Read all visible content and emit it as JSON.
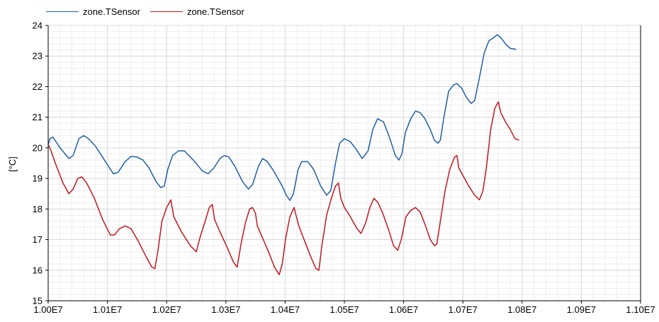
{
  "chart_data": {
    "type": "line",
    "xlabel": "",
    "ylabel": "[°C]",
    "xlim": [
      10000000,
      11000000
    ],
    "ylim": [
      15,
      24
    ],
    "grid": true,
    "legend_position": "top-left",
    "x_ticks": [
      10000000,
      10100000,
      10200000,
      10300000,
      10400000,
      10500000,
      10600000,
      10700000,
      10800000,
      10900000,
      11000000
    ],
    "x_tick_labels": [
      "1.00E7",
      "1.01E7",
      "1.02E7",
      "1.03E7",
      "1.04E7",
      "1.05E7",
      "1.06E7",
      "1.07E7",
      "1.08E7",
      "1.09E7",
      "1.10E7"
    ],
    "y_ticks": [
      15,
      16,
      17,
      18,
      19,
      20,
      21,
      22,
      23,
      24
    ],
    "y_tick_labels": [
      "15",
      "16",
      "17",
      "18",
      "19",
      "20",
      "21",
      "22",
      "23",
      "24"
    ],
    "series": [
      {
        "name": "zone.TSensor",
        "color": "#1f5fa6",
        "points": [
          [
            10000000,
            20.1
          ],
          [
            10003000,
            20.3
          ],
          [
            10008000,
            20.35
          ],
          [
            10020000,
            20.0
          ],
          [
            10035000,
            19.65
          ],
          [
            10042000,
            19.75
          ],
          [
            10052000,
            20.3
          ],
          [
            10060000,
            20.4
          ],
          [
            10068000,
            20.3
          ],
          [
            10080000,
            20.05
          ],
          [
            10095000,
            19.6
          ],
          [
            10110000,
            19.15
          ],
          [
            10118000,
            19.2
          ],
          [
            10130000,
            19.55
          ],
          [
            10140000,
            19.72
          ],
          [
            10150000,
            19.7
          ],
          [
            10160000,
            19.6
          ],
          [
            10170000,
            19.35
          ],
          [
            10182000,
            18.9
          ],
          [
            10190000,
            18.7
          ],
          [
            10196000,
            18.75
          ],
          [
            10202000,
            19.3
          ],
          [
            10210000,
            19.75
          ],
          [
            10220000,
            19.9
          ],
          [
            10230000,
            19.9
          ],
          [
            10245000,
            19.6
          ],
          [
            10260000,
            19.25
          ],
          [
            10270000,
            19.15
          ],
          [
            10280000,
            19.35
          ],
          [
            10290000,
            19.65
          ],
          [
            10297000,
            19.75
          ],
          [
            10305000,
            19.7
          ],
          [
            10315000,
            19.4
          ],
          [
            10328000,
            18.9
          ],
          [
            10338000,
            18.65
          ],
          [
            10345000,
            18.8
          ],
          [
            10355000,
            19.4
          ],
          [
            10362000,
            19.65
          ],
          [
            10370000,
            19.55
          ],
          [
            10382000,
            19.2
          ],
          [
            10395000,
            18.75
          ],
          [
            10402000,
            18.45
          ],
          [
            10408000,
            18.28
          ],
          [
            10414000,
            18.5
          ],
          [
            10422000,
            19.3
          ],
          [
            10428000,
            19.55
          ],
          [
            10438000,
            19.55
          ],
          [
            10448000,
            19.3
          ],
          [
            10460000,
            18.75
          ],
          [
            10470000,
            18.45
          ],
          [
            10477000,
            18.6
          ],
          [
            10485000,
            19.5
          ],
          [
            10492000,
            20.15
          ],
          [
            10500000,
            20.3
          ],
          [
            10510000,
            20.2
          ],
          [
            10520000,
            19.95
          ],
          [
            10530000,
            19.65
          ],
          [
            10540000,
            19.9
          ],
          [
            10548000,
            20.6
          ],
          [
            10556000,
            20.95
          ],
          [
            10566000,
            20.85
          ],
          [
            10576000,
            20.35
          ],
          [
            10586000,
            19.75
          ],
          [
            10592000,
            19.6
          ],
          [
            10597000,
            19.8
          ],
          [
            10603000,
            20.5
          ],
          [
            10612000,
            20.95
          ],
          [
            10620000,
            21.2
          ],
          [
            10628000,
            21.15
          ],
          [
            10636000,
            20.95
          ],
          [
            10645000,
            20.6
          ],
          [
            10652000,
            20.25
          ],
          [
            10658000,
            20.15
          ],
          [
            10662000,
            20.25
          ],
          [
            10668000,
            21.0
          ],
          [
            10676000,
            21.85
          ],
          [
            10684000,
            22.05
          ],
          [
            10690000,
            22.1
          ],
          [
            10698000,
            21.95
          ],
          [
            10706000,
            21.65
          ],
          [
            10714000,
            21.45
          ],
          [
            10720000,
            21.55
          ],
          [
            10728000,
            22.3
          ],
          [
            10736000,
            23.1
          ],
          [
            10744000,
            23.5
          ],
          [
            10752000,
            23.6
          ],
          [
            10758000,
            23.7
          ],
          [
            10764000,
            23.6
          ],
          [
            10772000,
            23.4
          ],
          [
            10780000,
            23.25
          ],
          [
            10790000,
            23.22
          ]
        ]
      },
      {
        "name": "zone.TSensor",
        "color": "#c0181e",
        "points": [
          [
            10000000,
            20.1
          ],
          [
            10004000,
            19.95
          ],
          [
            10012000,
            19.5
          ],
          [
            10025000,
            18.85
          ],
          [
            10035000,
            18.5
          ],
          [
            10042000,
            18.65
          ],
          [
            10050000,
            19.0
          ],
          [
            10057000,
            19.05
          ],
          [
            10065000,
            18.85
          ],
          [
            10078000,
            18.35
          ],
          [
            10092000,
            17.65
          ],
          [
            10105000,
            17.15
          ],
          [
            10112000,
            17.15
          ],
          [
            10120000,
            17.35
          ],
          [
            10130000,
            17.45
          ],
          [
            10140000,
            17.35
          ],
          [
            10152000,
            16.95
          ],
          [
            10165000,
            16.45
          ],
          [
            10175000,
            16.1
          ],
          [
            10180000,
            16.05
          ],
          [
            10185000,
            16.6
          ],
          [
            10192000,
            17.6
          ],
          [
            10200000,
            18.05
          ],
          [
            10207000,
            18.3
          ],
          [
            10212000,
            17.75
          ],
          [
            10225000,
            17.25
          ],
          [
            10240000,
            16.8
          ],
          [
            10250000,
            16.6
          ],
          [
            10256000,
            17.05
          ],
          [
            10265000,
            17.6
          ],
          [
            10272000,
            18.05
          ],
          [
            10277000,
            18.15
          ],
          [
            10281000,
            17.65
          ],
          [
            10290000,
            17.25
          ],
          [
            10302000,
            16.75
          ],
          [
            10313000,
            16.25
          ],
          [
            10319000,
            16.1
          ],
          [
            10325000,
            16.8
          ],
          [
            10333000,
            17.55
          ],
          [
            10340000,
            18.0
          ],
          [
            10345000,
            18.05
          ],
          [
            10350000,
            17.85
          ],
          [
            10353000,
            17.45
          ],
          [
            10362000,
            17.05
          ],
          [
            10372000,
            16.6
          ],
          [
            10382000,
            16.1
          ],
          [
            10390000,
            15.85
          ],
          [
            10395000,
            16.2
          ],
          [
            10401000,
            17.05
          ],
          [
            10408000,
            17.75
          ],
          [
            10415000,
            18.05
          ],
          [
            10419000,
            17.75
          ],
          [
            10423000,
            17.45
          ],
          [
            10432000,
            17.0
          ],
          [
            10443000,
            16.45
          ],
          [
            10452000,
            16.05
          ],
          [
            10457000,
            16.0
          ],
          [
            10462000,
            16.8
          ],
          [
            10470000,
            17.8
          ],
          [
            10478000,
            18.35
          ],
          [
            10485000,
            18.75
          ],
          [
            10490000,
            18.85
          ],
          [
            10494000,
            18.35
          ],
          [
            10500000,
            18.05
          ],
          [
            10510000,
            17.75
          ],
          [
            10520000,
            17.4
          ],
          [
            10528000,
            17.2
          ],
          [
            10536000,
            17.55
          ],
          [
            10543000,
            18.05
          ],
          [
            10550000,
            18.35
          ],
          [
            10557000,
            18.2
          ],
          [
            10565000,
            17.85
          ],
          [
            10575000,
            17.3
          ],
          [
            10583000,
            16.8
          ],
          [
            10590000,
            16.65
          ],
          [
            10596000,
            17.0
          ],
          [
            10604000,
            17.75
          ],
          [
            10612000,
            17.95
          ],
          [
            10620000,
            18.05
          ],
          [
            10628000,
            17.9
          ],
          [
            10636000,
            17.5
          ],
          [
            10645000,
            17.0
          ],
          [
            10652000,
            16.8
          ],
          [
            10656000,
            16.85
          ],
          [
            10662000,
            17.6
          ],
          [
            10670000,
            18.6
          ],
          [
            10678000,
            19.3
          ],
          [
            10686000,
            19.7
          ],
          [
            10690000,
            19.75
          ],
          [
            10693000,
            19.35
          ],
          [
            10700000,
            19.1
          ],
          [
            10710000,
            18.75
          ],
          [
            10720000,
            18.45
          ],
          [
            10728000,
            18.3
          ],
          [
            10734000,
            18.6
          ],
          [
            10740000,
            19.4
          ],
          [
            10747000,
            20.6
          ],
          [
            10754000,
            21.3
          ],
          [
            10760000,
            21.5
          ],
          [
            10764000,
            21.15
          ],
          [
            10772000,
            20.85
          ],
          [
            10780000,
            20.6
          ],
          [
            10788000,
            20.3
          ],
          [
            10795000,
            20.25
          ]
        ]
      }
    ]
  }
}
